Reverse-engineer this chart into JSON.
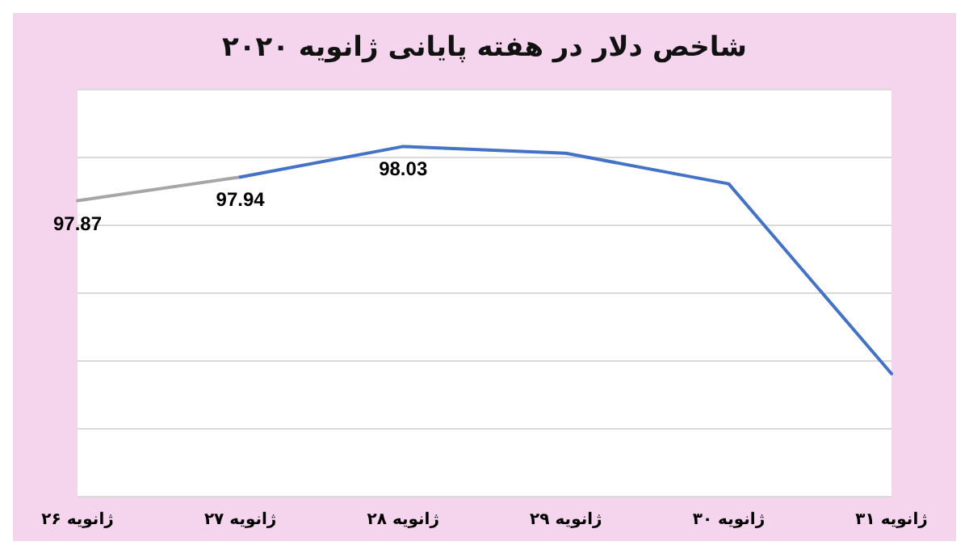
{
  "chart_data": {
    "type": "line",
    "title": "شاخص دلار در هفته پایانی ژانویه ۲۰۲۰",
    "categories": [
      "۲۶ ژانویه",
      "۲۷ ژانویه",
      "۲۸ ژانویه",
      "۲۹ ژانویه",
      "۳۰ ژانویه",
      "۳۱ ژانویه"
    ],
    "series": [
      {
        "color": "#a6a6a6",
        "values": [
          97.87,
          97.94,
          null,
          null,
          null,
          null
        ],
        "value_labels": [
          "97.87",
          "97.94",
          null,
          null,
          null,
          null
        ]
      },
      {
        "color": "#4472c4",
        "values": [
          null,
          97.94,
          98.03,
          98.01,
          97.92,
          97.36
        ],
        "value_labels": [
          null,
          null,
          "98.03",
          null,
          null,
          null
        ]
      }
    ],
    "ylim": [
      97.0,
      98.2
    ],
    "yticks": [
      97.0,
      97.2,
      97.4,
      97.6,
      97.8,
      98.0,
      98.2
    ],
    "tick_labels": "x",
    "grid": "y",
    "marker": "none"
  }
}
